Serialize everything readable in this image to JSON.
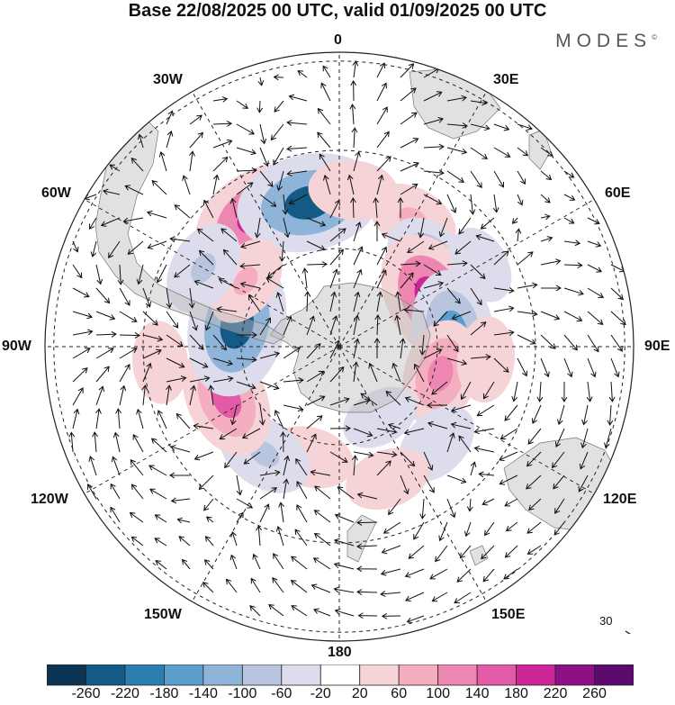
{
  "title": "Base 22/08/2025 00 UTC, valid 01/09/2025 00 UTC",
  "brand": "MODES",
  "brand_mark": "©",
  "longitude_labels": {
    "lon_0": "0",
    "lon_30e": "30E",
    "lon_60e": "60E",
    "lon_90e": "90E",
    "lon_120e": "120E",
    "lon_150e": "150E",
    "lon_180": "180",
    "lon_150w": "150W",
    "lon_120w": "120W",
    "lon_90w": "90W",
    "lon_60w": "60W",
    "lon_30w": "30W"
  },
  "reference_vector": {
    "label": "30"
  },
  "colorbar": {
    "ticks": [
      "-260",
      "-220",
      "-180",
      "-140",
      "-100",
      "-60",
      "-20",
      "20",
      "60",
      "100",
      "140",
      "180",
      "220",
      "260"
    ],
    "colors": [
      "#0c3555",
      "#135a86",
      "#2a7fb0",
      "#5a9fcb",
      "#8fb4d9",
      "#b9c4df",
      "#dcdcec",
      "#ffffff",
      "#f6d3d6",
      "#f5aebf",
      "#ee86b2",
      "#e35aa7",
      "#cc2595",
      "#8e0f86",
      "#5b0a6e"
    ]
  },
  "anomalies": [
    {
      "lon": -32,
      "lat": -43,
      "value": 200
    },
    {
      "lon": -12,
      "lat": -45,
      "value": -230
    },
    {
      "lon": 5,
      "lat": -42,
      "value": 60
    },
    {
      "lon": 30,
      "lat": -45,
      "value": 70
    },
    {
      "lon": 48,
      "lat": -52,
      "value": -110
    },
    {
      "lon": 62,
      "lat": -58,
      "value": 200
    },
    {
      "lon": 82,
      "lat": -55,
      "value": -160
    },
    {
      "lon": 105,
      "lat": -58,
      "value": 120
    },
    {
      "lon": 95,
      "lat": -45,
      "value": 50
    },
    {
      "lon": 135,
      "lat": -48,
      "value": -60
    },
    {
      "lon": 160,
      "lat": -47,
      "value": 50
    },
    {
      "lon": -165,
      "lat": -55,
      "value": 60
    },
    {
      "lon": -145,
      "lat": -50,
      "value": -90
    },
    {
      "lon": -115,
      "lat": -52,
      "value": 150
    },
    {
      "lon": -78,
      "lat": -58,
      "value": -230
    },
    {
      "lon": -55,
      "lat": -55,
      "value": 70
    },
    {
      "lon": -60,
      "lat": -42,
      "value": -80
    },
    {
      "lon": -95,
      "lat": -35,
      "value": 40
    },
    {
      "lon": 60,
      "lat": -40,
      "value": -30
    },
    {
      "lon": 150,
      "lat": -65,
      "value": -30
    }
  ]
}
